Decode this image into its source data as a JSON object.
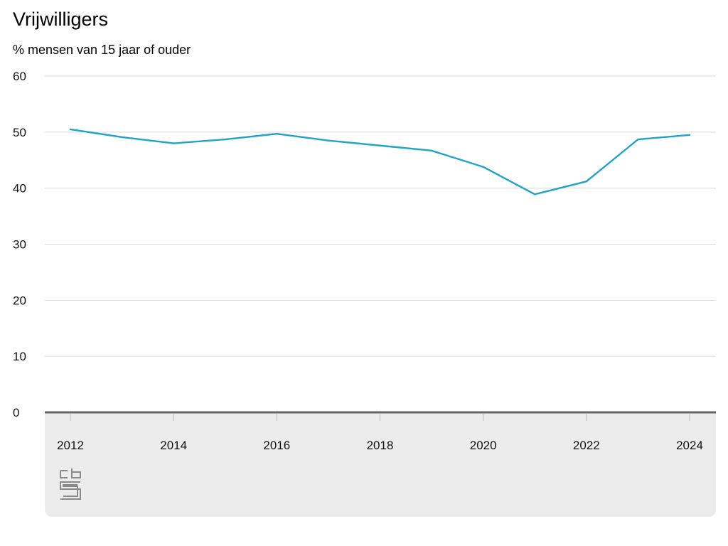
{
  "chart_data": {
    "type": "line",
    "title": "Vrijwilligers",
    "subtitle": "% mensen van 15 jaar of ouder",
    "x": [
      2012,
      2013,
      2014,
      2015,
      2016,
      2017,
      2018,
      2019,
      2020,
      2021,
      2022,
      2023,
      2024
    ],
    "series": [
      {
        "values": [
          50.5,
          49.1,
          48.0,
          48.7,
          49.7,
          48.5,
          47.6,
          46.7,
          43.8,
          38.9,
          41.2,
          48.7,
          49.5
        ]
      }
    ],
    "yticks": [
      0,
      10,
      20,
      30,
      40,
      50,
      60
    ],
    "xticks": [
      2012,
      2014,
      2016,
      2018,
      2020,
      2022,
      2024
    ],
    "ylim": [
      0,
      60
    ],
    "xlim": [
      2012,
      2024
    ],
    "grid": true,
    "line_color": "#21a3c6"
  },
  "logo": {
    "name": "cbs-logo",
    "text": "cbs"
  }
}
